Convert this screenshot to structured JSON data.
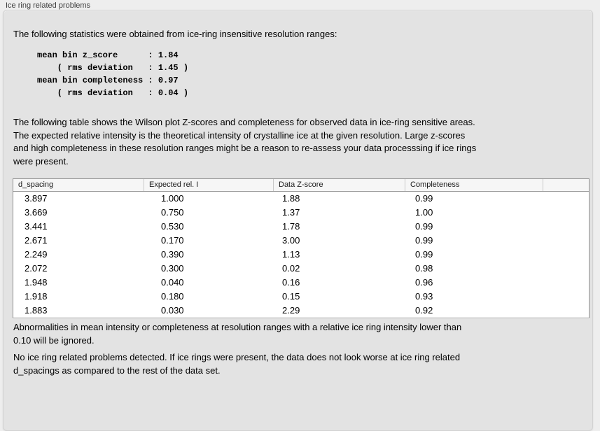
{
  "panel": {
    "title": "Ice ring related problems"
  },
  "intro": "The following statistics were obtained from ice-ring insensitive resolution ranges:",
  "stats_block": "mean bin z_score      : 1.84\n    ( rms deviation   : 1.45 )\nmean bin completeness : 0.97\n    ( rms deviation   : 0.04 )",
  "description": "The following table shows the Wilson plot Z-scores and completeness for observed data in ice-ring sensitive areas.\nThe expected relative intensity is the theoretical intensity of crystalline ice at the given resolution. Large z-scores\nand high completeness in these resolution ranges might be a reason to re-assess your data processsing if ice rings\nwere present.",
  "table": {
    "columns": [
      "d_spacing",
      "Expected rel. I",
      "Data Z-score",
      "Completeness"
    ],
    "rows": [
      [
        "3.897",
        "1.000",
        "1.88",
        "0.99"
      ],
      [
        "3.669",
        "0.750",
        "1.37",
        "1.00"
      ],
      [
        "3.441",
        "0.530",
        "1.78",
        "0.99"
      ],
      [
        "2.671",
        "0.170",
        "3.00",
        "0.99"
      ],
      [
        "2.249",
        "0.390",
        "1.13",
        "0.99"
      ],
      [
        "2.072",
        "0.300",
        "0.02",
        "0.98"
      ],
      [
        "1.948",
        "0.040",
        "0.16",
        "0.96"
      ],
      [
        "1.918",
        "0.180",
        "0.15",
        "0.93"
      ],
      [
        "1.883",
        "0.030",
        "2.29",
        "0.92"
      ]
    ]
  },
  "notes": {
    "ignore_rule": "Abnormalities in mean intensity or completeness at resolution ranges with a relative ice ring intensity lower than\n0.10 will be ignored.",
    "conclusion": "No ice ring related problems detected. If ice rings were present, the data does not look worse at ice ring related\nd_spacings as compared to the rest of the data set."
  },
  "colors": {
    "page_background": "#eeeeee",
    "panel_background": "#e3e3e3",
    "table_background": "#ffffff",
    "table_header_background": "#f6f6f6",
    "text": "#000000"
  }
}
